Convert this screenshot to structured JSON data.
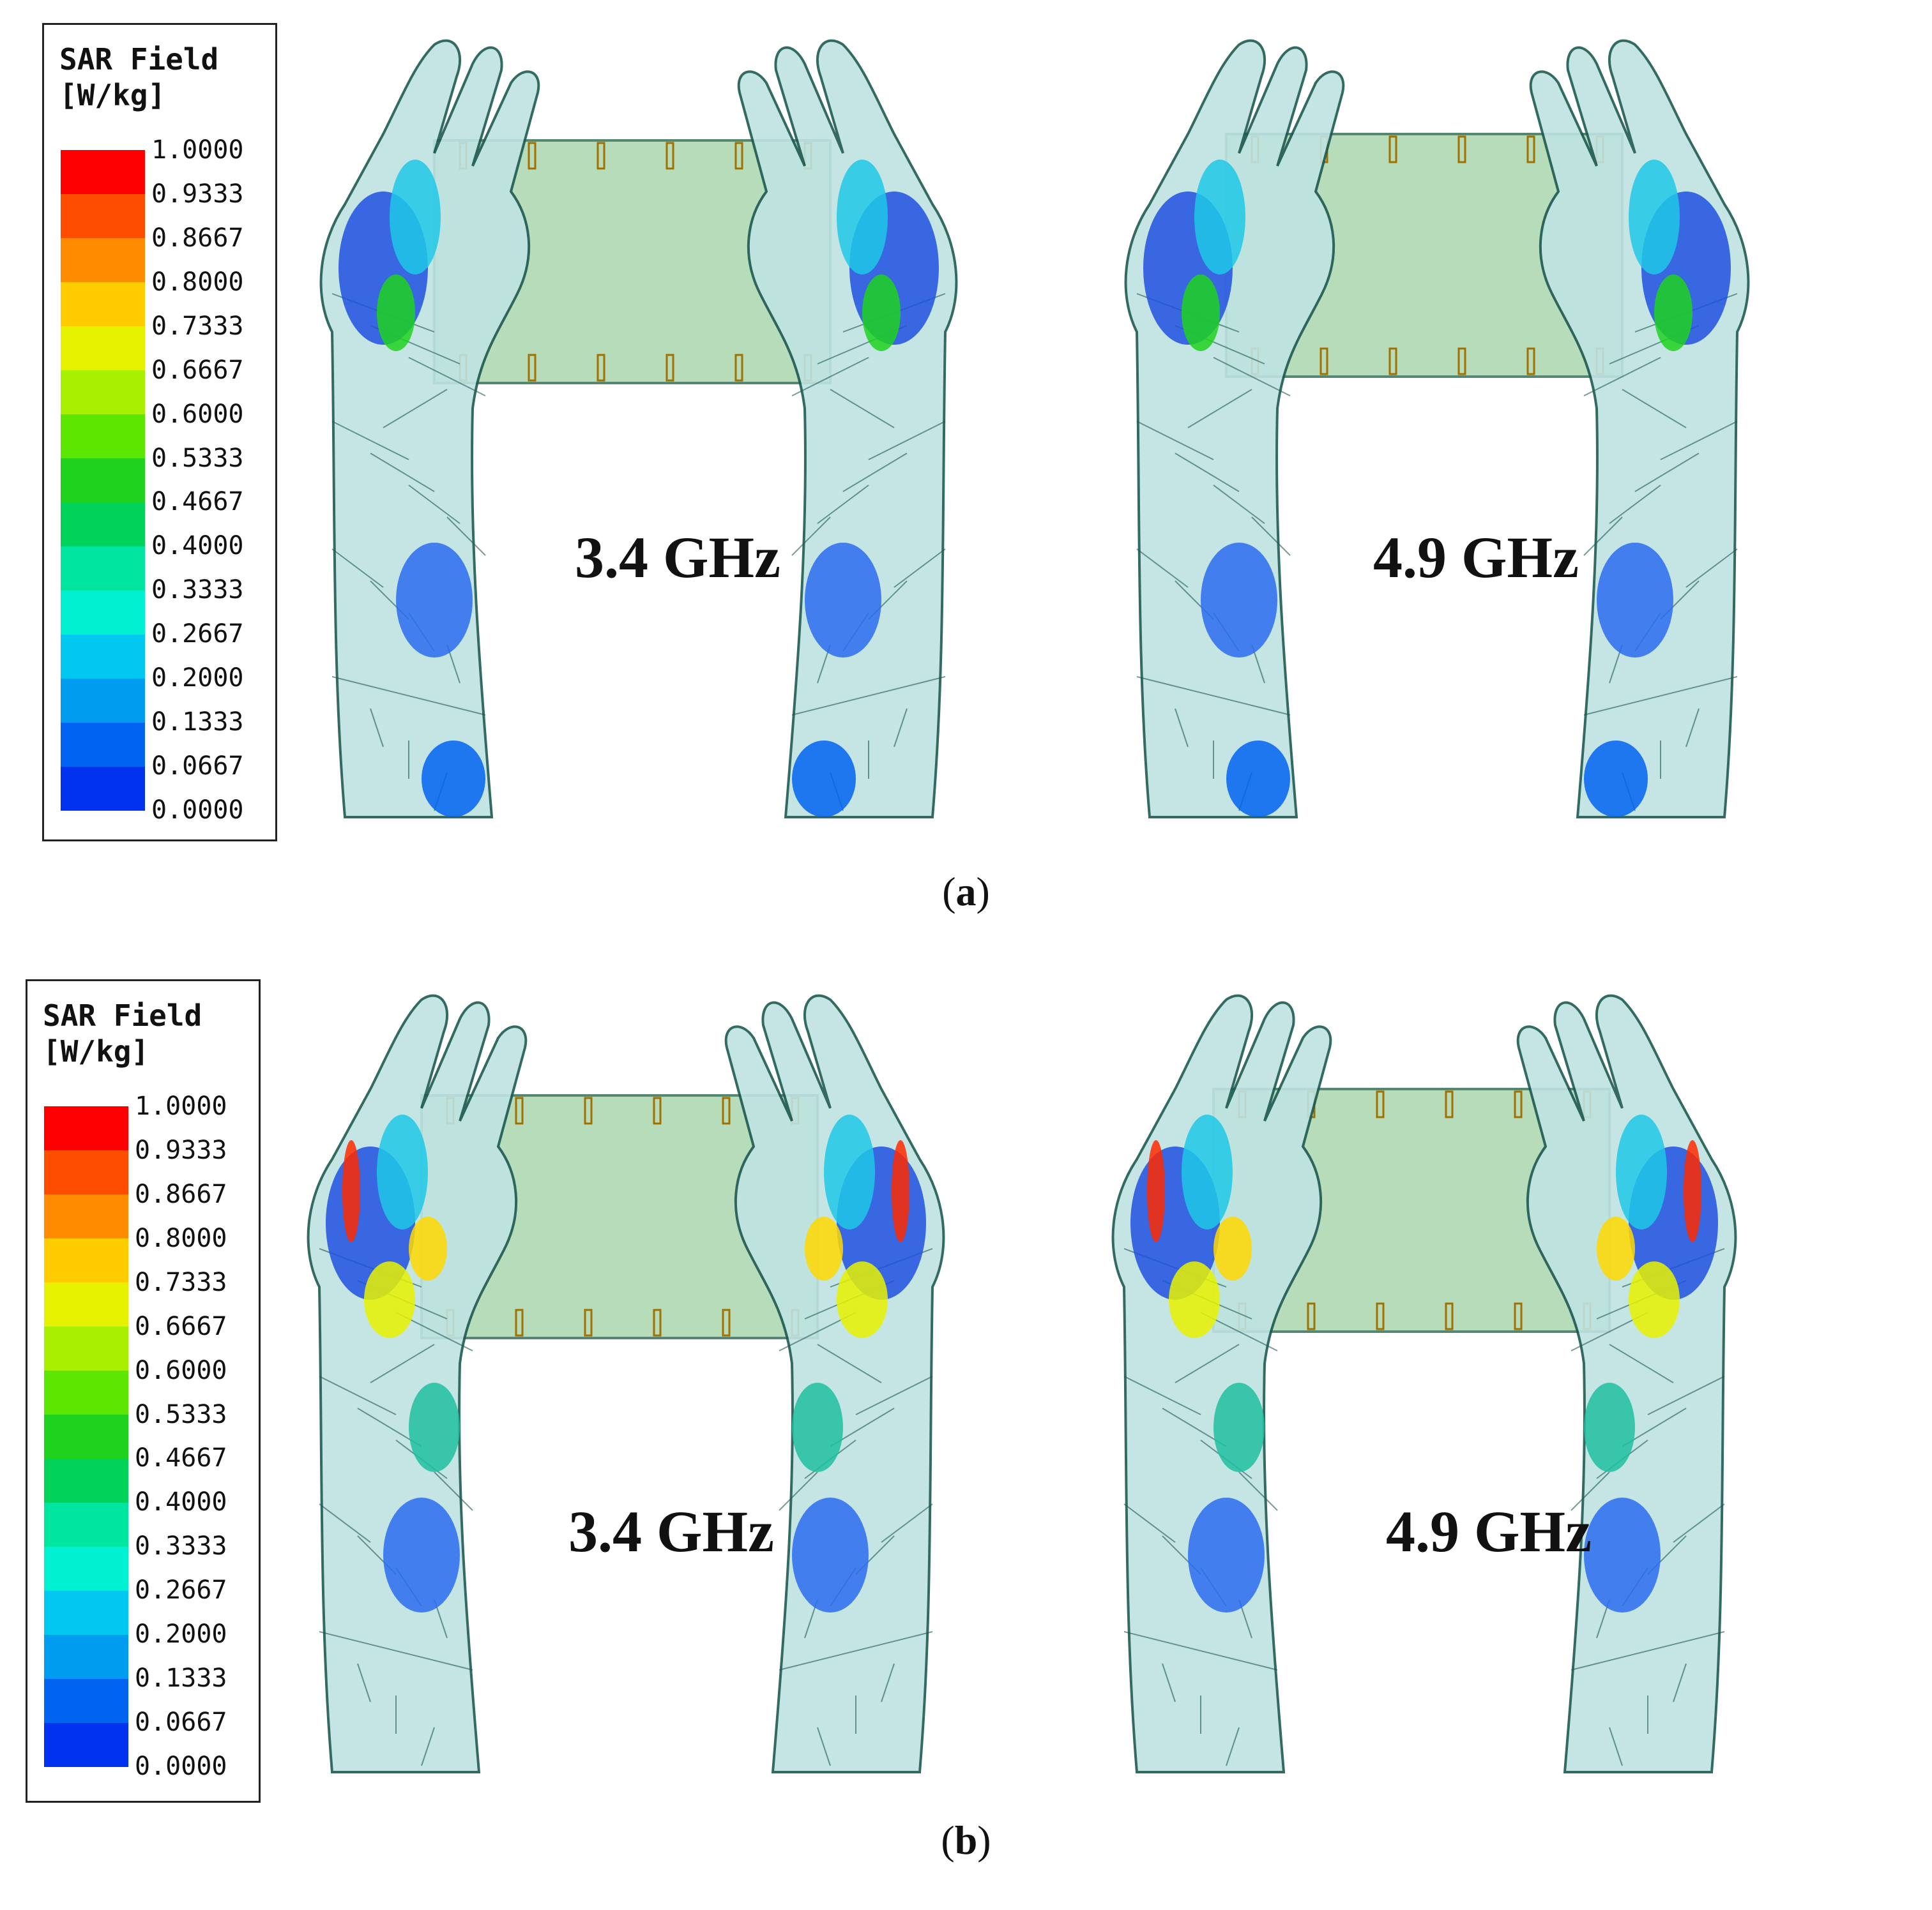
{
  "legend": {
    "title_line1": "SAR Field",
    "title_line2": "[W/kg]",
    "ticks": [
      "1.0000",
      "0.9333",
      "0.8667",
      "0.8000",
      "0.7333",
      "0.6667",
      "0.6000",
      "0.5333",
      "0.4667",
      "0.4000",
      "0.3333",
      "0.2667",
      "0.2000",
      "0.1333",
      "0.0667",
      "0.0000"
    ],
    "colors": [
      "#ff0000",
      "#ff4d00",
      "#ff8c00",
      "#ffcc00",
      "#e6f200",
      "#a8f000",
      "#5ce600",
      "#1ed21e",
      "#00d25a",
      "#00e6a0",
      "#00f0d2",
      "#00c8f0",
      "#009cf0",
      "#0064f0",
      "#0032f0"
    ]
  },
  "panels": [
    {
      "id": "a",
      "caption_letter": "a",
      "labels": [
        "3.4 GHz",
        "4.9 GHz"
      ]
    },
    {
      "id": "b",
      "caption_letter": "b",
      "labels": [
        "3.4 GHz",
        "4.9 GHz"
      ]
    }
  ]
}
